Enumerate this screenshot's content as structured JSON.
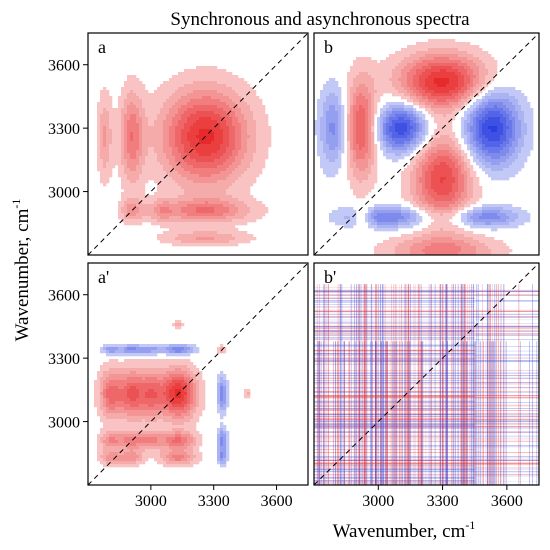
{
  "chart_data": {
    "type": "heatmap",
    "title": "Synchronous and asynchronous spectra",
    "xlabel": "Wavenumber, cm",
    "xlabel_sup": "-1",
    "ylabel": "Wavenumber, cm",
    "ylabel_sup": "-1",
    "xlim": [
      2700,
      3750
    ],
    "ylim": [
      2700,
      3750
    ],
    "x_ticks": [
      3000,
      3300,
      3600
    ],
    "y_ticks": [
      3000,
      3300,
      3600
    ],
    "levels": 8,
    "colors": {
      "positive": "#e8292b",
      "negative": "#2a3fe0",
      "frame": "#000000",
      "diagonal": "#000000"
    },
    "panels": [
      {
        "label": "a",
        "kind": "synchronous",
        "peaks": [
          {
            "x": 3260,
            "y": 3260,
            "sx": 140,
            "sy": 150,
            "a": 1.0
          },
          {
            "x": 2910,
            "y": 3260,
            "sx": 40,
            "sy": 150,
            "a": 0.55
          },
          {
            "x": 3260,
            "y": 2910,
            "sx": 150,
            "sy": 40,
            "a": 0.55
          },
          {
            "x": 2910,
            "y": 2910,
            "sx": 40,
            "sy": 40,
            "a": 0.35
          },
          {
            "x": 3050,
            "y": 2910,
            "sx": 40,
            "sy": 40,
            "a": 0.25
          },
          {
            "x": 2780,
            "y": 3260,
            "sx": 25,
            "sy": 140,
            "a": 0.35
          },
          {
            "x": 3260,
            "y": 2780,
            "sx": 140,
            "sy": 25,
            "a": 0.35
          }
        ]
      },
      {
        "label": "b",
        "kind": "asynchronous",
        "peaks": [
          {
            "x": 3300,
            "y": 3520,
            "sx": 140,
            "sy": 90,
            "a": 1.0
          },
          {
            "x": 3300,
            "y": 3060,
            "sx": 95,
            "sy": 140,
            "a": 0.85
          },
          {
            "x": 3110,
            "y": 3300,
            "sx": 80,
            "sy": 80,
            "a": -0.95
          },
          {
            "x": 3530,
            "y": 3300,
            "sx": 90,
            "sy": 120,
            "a": -1.0
          },
          {
            "x": 2920,
            "y": 3300,
            "sx": 50,
            "sy": 160,
            "a": 0.75
          },
          {
            "x": 2790,
            "y": 3300,
            "sx": 45,
            "sy": 130,
            "a": -0.5
          },
          {
            "x": 3040,
            "y": 2880,
            "sx": 140,
            "sy": 35,
            "a": -0.6
          },
          {
            "x": 3500,
            "y": 2880,
            "sx": 110,
            "sy": 35,
            "a": -0.55
          },
          {
            "x": 3300,
            "y": 2720,
            "sx": 170,
            "sy": 50,
            "a": 0.5
          },
          {
            "x": 2930,
            "y": 2880,
            "sx": 30,
            "sy": 35,
            "a": 0.4
          }
        ]
      },
      {
        "label": "a'",
        "kind": "synchronous",
        "peaks": [
          {
            "x": 3130,
            "y": 3130,
            "sx": 60,
            "sy": 80,
            "a": 1.0
          },
          {
            "x": 2910,
            "y": 3130,
            "sx": 40,
            "sy": 80,
            "a": 0.7
          },
          {
            "x": 2810,
            "y": 3130,
            "sx": 40,
            "sy": 80,
            "a": 0.65
          },
          {
            "x": 3000,
            "y": 3130,
            "sx": 40,
            "sy": 80,
            "a": 0.6
          },
          {
            "x": 3130,
            "y": 2910,
            "sx": 60,
            "sy": 30,
            "a": 0.6
          },
          {
            "x": 2910,
            "y": 2910,
            "sx": 40,
            "sy": 30,
            "a": 0.5
          },
          {
            "x": 2810,
            "y": 2910,
            "sx": 40,
            "sy": 30,
            "a": 0.45
          },
          {
            "x": 3000,
            "y": 2910,
            "sx": 40,
            "sy": 30,
            "a": 0.4
          },
          {
            "x": 3130,
            "y": 2830,
            "sx": 60,
            "sy": 25,
            "a": 0.5
          },
          {
            "x": 2810,
            "y": 2830,
            "sx": 40,
            "sy": 25,
            "a": 0.4
          },
          {
            "x": 2910,
            "y": 2830,
            "sx": 40,
            "sy": 25,
            "a": 0.4
          },
          {
            "x": 3130,
            "y": 3340,
            "sx": 55,
            "sy": 16,
            "a": -0.6
          },
          {
            "x": 2910,
            "y": 3340,
            "sx": 40,
            "sy": 16,
            "a": -0.55
          },
          {
            "x": 2810,
            "y": 3340,
            "sx": 30,
            "sy": 16,
            "a": -0.45
          },
          {
            "x": 3000,
            "y": 3340,
            "sx": 35,
            "sy": 16,
            "a": -0.35
          },
          {
            "x": 3340,
            "y": 3130,
            "sx": 16,
            "sy": 55,
            "a": -0.6
          },
          {
            "x": 3340,
            "y": 2910,
            "sx": 16,
            "sy": 40,
            "a": -0.55
          },
          {
            "x": 3340,
            "y": 2830,
            "sx": 16,
            "sy": 25,
            "a": -0.4
          },
          {
            "x": 3340,
            "y": 3340,
            "sx": 14,
            "sy": 14,
            "a": 0.3
          },
          {
            "x": 3130,
            "y": 3460,
            "sx": 18,
            "sy": 12,
            "a": 0.25
          },
          {
            "x": 3460,
            "y": 3130,
            "sx": 12,
            "sy": 18,
            "a": 0.25
          }
        ]
      },
      {
        "label": "b'",
        "kind": "noise",
        "peaks": []
      }
    ]
  }
}
